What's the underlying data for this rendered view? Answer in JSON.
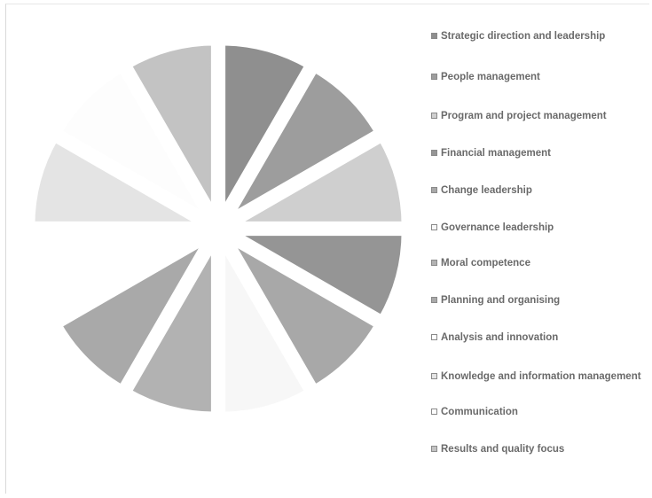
{
  "chart_data": {
    "type": "pie",
    "title": "",
    "categories": [
      "Strategic direction and leadership",
      "People management",
      "Program and project management",
      "Financial management",
      "Change leadership",
      "Governance leadership",
      "Moral competence",
      "Planning and organising",
      "Analysis and innovation",
      "Knowledge and information management",
      "Communication",
      "Results and quality focus"
    ],
    "values": [
      8.33,
      8.33,
      8.33,
      8.33,
      8.33,
      8.33,
      8.33,
      8.33,
      8.33,
      8.33,
      8.33,
      8.33
    ],
    "colors": [
      "#8f8f8f",
      "#9d9d9d",
      "#cfcfcf",
      "#959595",
      "#a8a8a8",
      "#f7f7f7",
      "#b2b2b2",
      "#a9a9a9",
      "#ffffff",
      "#e4e4e4",
      "#fdfdfd",
      "#c3c3c3"
    ],
    "legend_position": "right",
    "start_angle_deg": 0,
    "direction": "clockwise",
    "exploded": true
  },
  "legend": {
    "items": [
      {
        "label": "Strategic direction and leadership",
        "color": "#8f8f8f"
      },
      {
        "label": "People management",
        "color": "#9d9d9d"
      },
      {
        "label": "Program and project management",
        "color": "#cfcfcf"
      },
      {
        "label": "Financial management",
        "color": "#959595"
      },
      {
        "label": "Change leadership",
        "color": "#a8a8a8"
      },
      {
        "label": "Governance leadership",
        "color": "#f7f7f7"
      },
      {
        "label": "Moral competence",
        "color": "#b2b2b2"
      },
      {
        "label": "Planning and organising",
        "color": "#a9a9a9"
      },
      {
        "label": "Analysis and innovation",
        "color": "#ffffff"
      },
      {
        "label": "Knowledge and information management",
        "color": "#e4e4e4"
      },
      {
        "label": "Communication",
        "color": "#fdfdfd"
      },
      {
        "label": "Results and quality focus",
        "color": "#c3c3c3"
      }
    ]
  }
}
